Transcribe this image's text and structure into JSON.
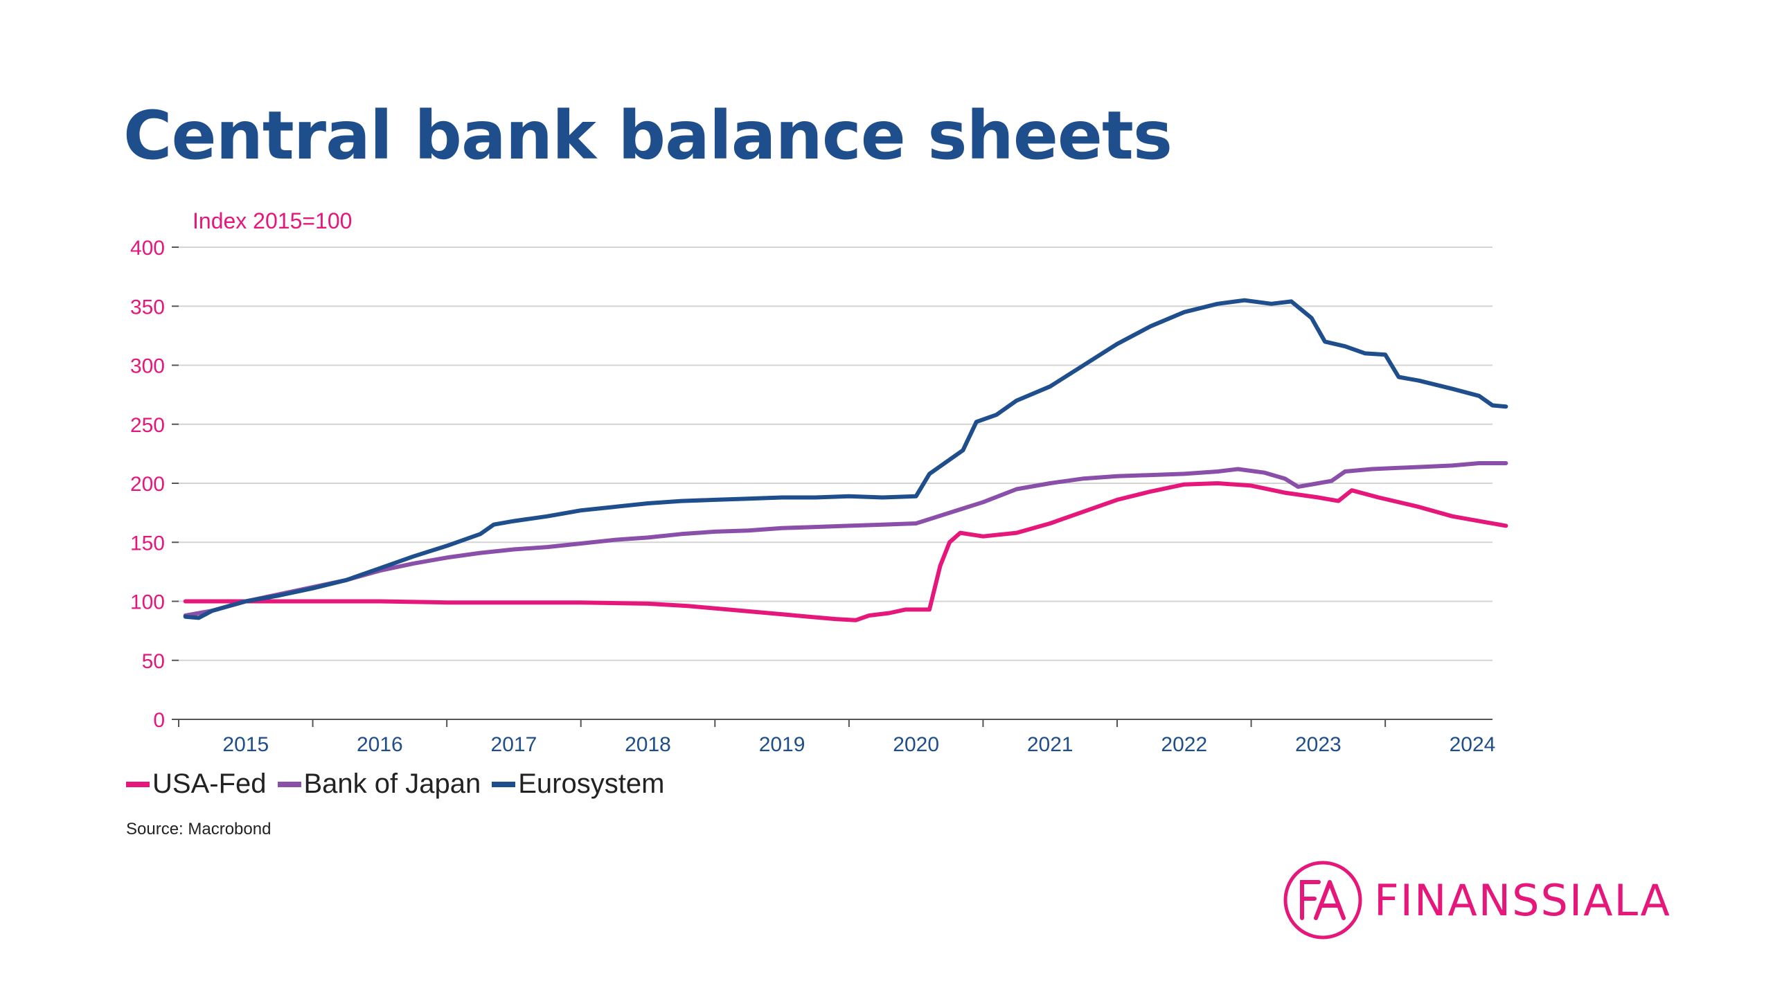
{
  "page": {
    "title": "Central bank balance sheets",
    "source": "Source: Macrobond"
  },
  "logo": {
    "mark": "FA",
    "text": "FINANSSIALA"
  },
  "chart_data": {
    "type": "line",
    "title": "Central bank balance sheets",
    "ylabel": "Index 2015=100",
    "xlabel": "",
    "ylim": [
      0,
      400
    ],
    "xlim": [
      2014.5,
      2024.3
    ],
    "yticks": [
      0,
      50,
      100,
      150,
      200,
      250,
      300,
      350,
      400
    ],
    "xtick_labels": [
      {
        "label": "2015",
        "x": 2015.0
      },
      {
        "label": "2016",
        "x": 2016.0
      },
      {
        "label": "2017",
        "x": 2017.0
      },
      {
        "label": "2018",
        "x": 2018.0
      },
      {
        "label": "2019",
        "x": 2019.0
      },
      {
        "label": "2020",
        "x": 2020.0
      },
      {
        "label": "2021",
        "x": 2021.0
      },
      {
        "label": "2022",
        "x": 2022.0
      },
      {
        "label": "2023",
        "x": 2023.0
      },
      {
        "label": "2024",
        "x": 2024.15
      }
    ],
    "xtick_marks": [
      2014.5,
      2015.5,
      2016.5,
      2017.5,
      2018.5,
      2019.5,
      2020.5,
      2021.5,
      2022.5,
      2023.5
    ],
    "grid": true,
    "legend_position": "bottom-left",
    "series": [
      {
        "name": "USA-Fed",
        "color": "#e5177b",
        "points": [
          [
            2014.55,
            100
          ],
          [
            2015.0,
            100
          ],
          [
            2015.5,
            100
          ],
          [
            2016.0,
            100
          ],
          [
            2016.5,
            99
          ],
          [
            2017.0,
            99
          ],
          [
            2017.5,
            99
          ],
          [
            2018.0,
            98
          ],
          [
            2018.3,
            96
          ],
          [
            2018.6,
            93
          ],
          [
            2018.9,
            90
          ],
          [
            2019.2,
            87
          ],
          [
            2019.4,
            85
          ],
          [
            2019.55,
            84
          ],
          [
            2019.65,
            88
          ],
          [
            2019.8,
            90
          ],
          [
            2019.92,
            93
          ],
          [
            2020.1,
            93
          ],
          [
            2020.18,
            130
          ],
          [
            2020.25,
            150
          ],
          [
            2020.33,
            158
          ],
          [
            2020.5,
            155
          ],
          [
            2020.75,
            158
          ],
          [
            2021.0,
            166
          ],
          [
            2021.25,
            176
          ],
          [
            2021.5,
            186
          ],
          [
            2021.75,
            193
          ],
          [
            2022.0,
            199
          ],
          [
            2022.25,
            200
          ],
          [
            2022.5,
            198
          ],
          [
            2022.75,
            192
          ],
          [
            2023.0,
            188
          ],
          [
            2023.15,
            185
          ],
          [
            2023.25,
            194
          ],
          [
            2023.45,
            188
          ],
          [
            2023.75,
            180
          ],
          [
            2024.0,
            172
          ],
          [
            2024.25,
            167
          ],
          [
            2024.4,
            164
          ]
        ]
      },
      {
        "name": "Bank of Japan",
        "color": "#8a4fa8",
        "points": [
          [
            2014.55,
            88
          ],
          [
            2014.75,
            92
          ],
          [
            2015.0,
            100
          ],
          [
            2015.25,
            106
          ],
          [
            2015.5,
            112
          ],
          [
            2015.75,
            118
          ],
          [
            2016.0,
            126
          ],
          [
            2016.25,
            132
          ],
          [
            2016.5,
            137
          ],
          [
            2016.75,
            141
          ],
          [
            2017.0,
            144
          ],
          [
            2017.25,
            146
          ],
          [
            2017.5,
            149
          ],
          [
            2017.75,
            152
          ],
          [
            2018.0,
            154
          ],
          [
            2018.25,
            157
          ],
          [
            2018.5,
            159
          ],
          [
            2018.75,
            160
          ],
          [
            2019.0,
            162
          ],
          [
            2019.25,
            163
          ],
          [
            2019.5,
            164
          ],
          [
            2019.75,
            165
          ],
          [
            2020.0,
            166
          ],
          [
            2020.25,
            175
          ],
          [
            2020.5,
            184
          ],
          [
            2020.75,
            195
          ],
          [
            2021.0,
            200
          ],
          [
            2021.25,
            204
          ],
          [
            2021.5,
            206
          ],
          [
            2021.75,
            207
          ],
          [
            2022.0,
            208
          ],
          [
            2022.25,
            210
          ],
          [
            2022.4,
            212
          ],
          [
            2022.6,
            209
          ],
          [
            2022.75,
            204
          ],
          [
            2022.85,
            197
          ],
          [
            2023.0,
            200
          ],
          [
            2023.1,
            202
          ],
          [
            2023.2,
            210
          ],
          [
            2023.4,
            212
          ],
          [
            2023.6,
            213
          ],
          [
            2023.8,
            214
          ],
          [
            2024.0,
            215
          ],
          [
            2024.2,
            217
          ],
          [
            2024.4,
            217
          ]
        ]
      },
      {
        "name": "Eurosystem",
        "color": "#1f4e8c",
        "points": [
          [
            2014.55,
            87
          ],
          [
            2014.65,
            86
          ],
          [
            2014.75,
            92
          ],
          [
            2015.0,
            100
          ],
          [
            2015.25,
            105
          ],
          [
            2015.5,
            111
          ],
          [
            2015.75,
            118
          ],
          [
            2016.0,
            128
          ],
          [
            2016.25,
            138
          ],
          [
            2016.5,
            147
          ],
          [
            2016.75,
            157
          ],
          [
            2016.85,
            165
          ],
          [
            2017.0,
            168
          ],
          [
            2017.25,
            172
          ],
          [
            2017.5,
            177
          ],
          [
            2017.75,
            180
          ],
          [
            2018.0,
            183
          ],
          [
            2018.25,
            185
          ],
          [
            2018.5,
            186
          ],
          [
            2018.75,
            187
          ],
          [
            2019.0,
            188
          ],
          [
            2019.25,
            188
          ],
          [
            2019.5,
            189
          ],
          [
            2019.75,
            188
          ],
          [
            2020.0,
            189
          ],
          [
            2020.1,
            208
          ],
          [
            2020.35,
            228
          ],
          [
            2020.45,
            252
          ],
          [
            2020.6,
            258
          ],
          [
            2020.75,
            270
          ],
          [
            2021.0,
            282
          ],
          [
            2021.25,
            300
          ],
          [
            2021.5,
            318
          ],
          [
            2021.75,
            333
          ],
          [
            2022.0,
            345
          ],
          [
            2022.25,
            352
          ],
          [
            2022.45,
            355
          ],
          [
            2022.65,
            352
          ],
          [
            2022.8,
            354
          ],
          [
            2022.95,
            340
          ],
          [
            2023.05,
            320
          ],
          [
            2023.2,
            316
          ],
          [
            2023.35,
            310
          ],
          [
            2023.5,
            309
          ],
          [
            2023.6,
            290
          ],
          [
            2023.75,
            287
          ],
          [
            2024.0,
            280
          ],
          [
            2024.2,
            274
          ],
          [
            2024.3,
            266
          ],
          [
            2024.4,
            265
          ]
        ]
      }
    ]
  }
}
